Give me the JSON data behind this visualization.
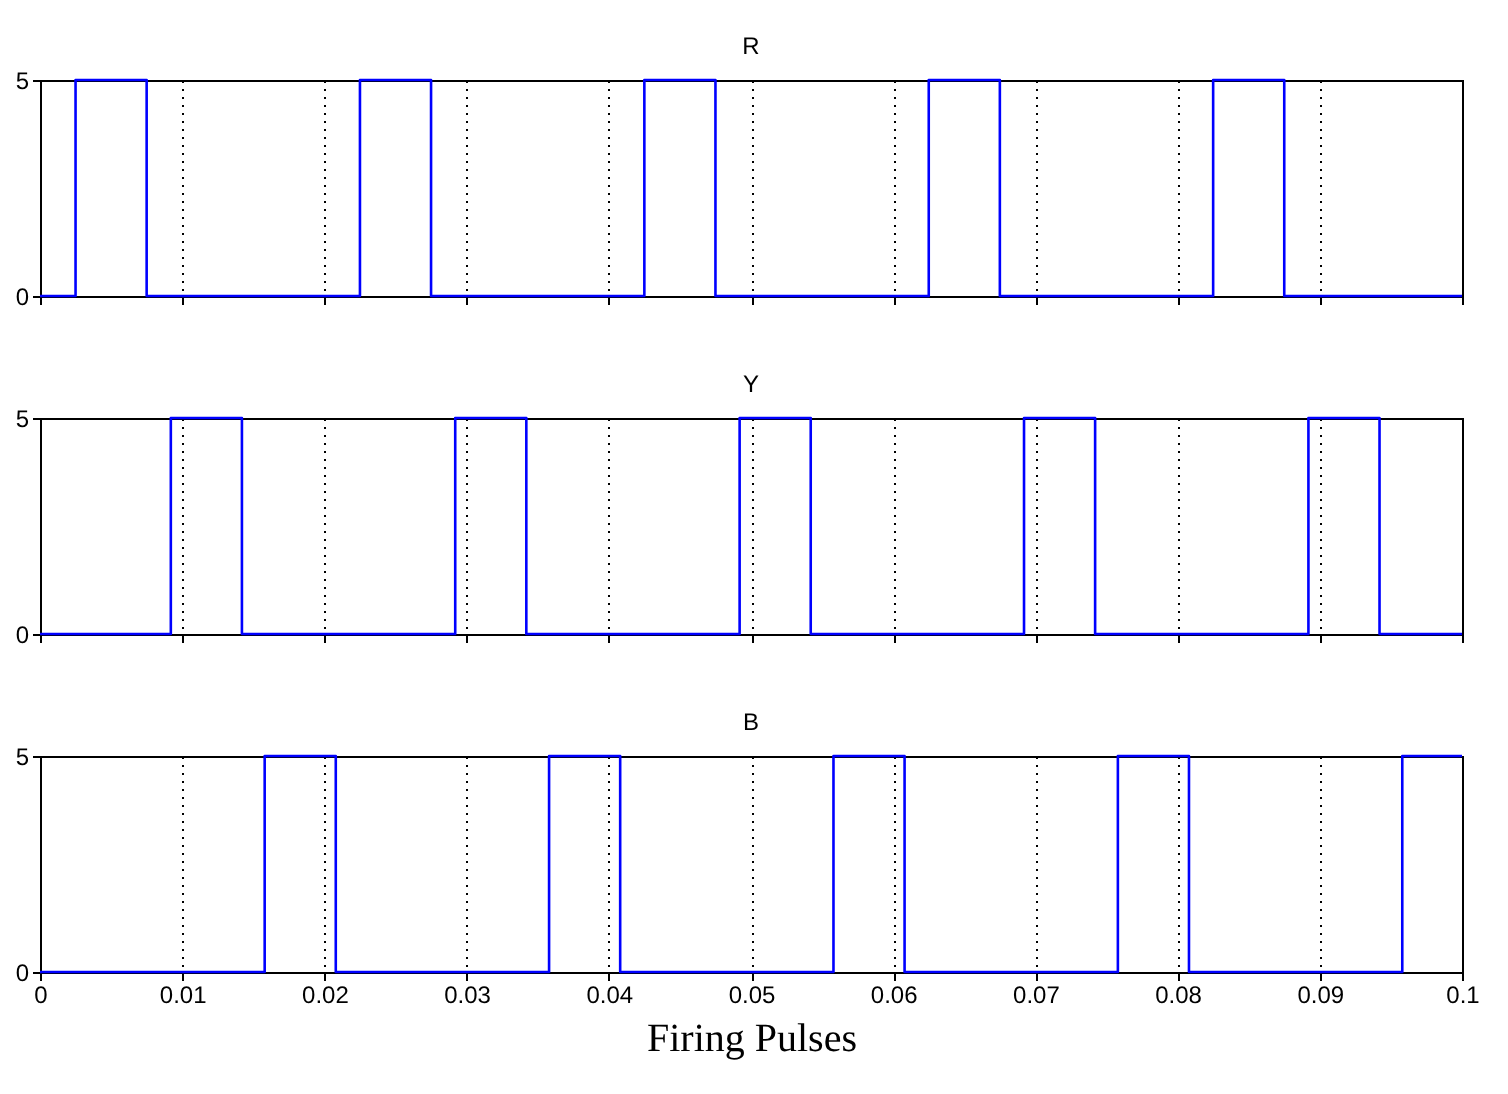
{
  "chart_data": [
    {
      "type": "step",
      "title": "R",
      "x": [
        0,
        0.0025,
        0.0075,
        0.0225,
        0.0275,
        0.0425,
        0.0475,
        0.0625,
        0.0675,
        0.0825,
        0.0875,
        0.1
      ],
      "values": [
        0,
        5,
        0,
        5,
        0,
        5,
        0,
        5,
        0,
        5,
        0,
        0
      ],
      "color": "#0000ff",
      "xlim": [
        0,
        0.1
      ],
      "xticks": [
        0,
        0.01,
        0.02,
        0.03,
        0.04,
        0.05,
        0.06,
        0.07,
        0.08,
        0.09,
        0.1
      ],
      "ylim": [
        0,
        5
      ],
      "yticks": [
        0,
        5
      ],
      "grid": "x",
      "tick_labels": "y"
    },
    {
      "type": "step",
      "title": "Y",
      "x": [
        0,
        0.0092,
        0.0142,
        0.0292,
        0.0342,
        0.0492,
        0.0542,
        0.0692,
        0.0742,
        0.0892,
        0.0942,
        0.1
      ],
      "values": [
        0,
        5,
        0,
        5,
        0,
        5,
        0,
        5,
        0,
        5,
        0,
        0
      ],
      "color": "#0000ff",
      "xlim": [
        0,
        0.1
      ],
      "xticks": [
        0,
        0.01,
        0.02,
        0.03,
        0.04,
        0.05,
        0.06,
        0.07,
        0.08,
        0.09,
        0.1
      ],
      "ylim": [
        0,
        5
      ],
      "yticks": [
        0,
        5
      ],
      "grid": "x",
      "tick_labels": "y"
    },
    {
      "type": "step",
      "title": "B",
      "xlabel": "Firing Pulses",
      "x": [
        0,
        0.0158,
        0.0208,
        0.0358,
        0.0408,
        0.0558,
        0.0608,
        0.0758,
        0.0808,
        0.0958,
        0.1
      ],
      "values": [
        0,
        5,
        0,
        5,
        0,
        5,
        0,
        5,
        0,
        5,
        5
      ],
      "color": "#0000ff",
      "xlim": [
        0,
        0.1
      ],
      "xticks": [
        0,
        0.01,
        0.02,
        0.03,
        0.04,
        0.05,
        0.06,
        0.07,
        0.08,
        0.09,
        0.1
      ],
      "ylim": [
        0,
        5
      ],
      "yticks": [
        0,
        5
      ],
      "grid": "x"
    }
  ]
}
